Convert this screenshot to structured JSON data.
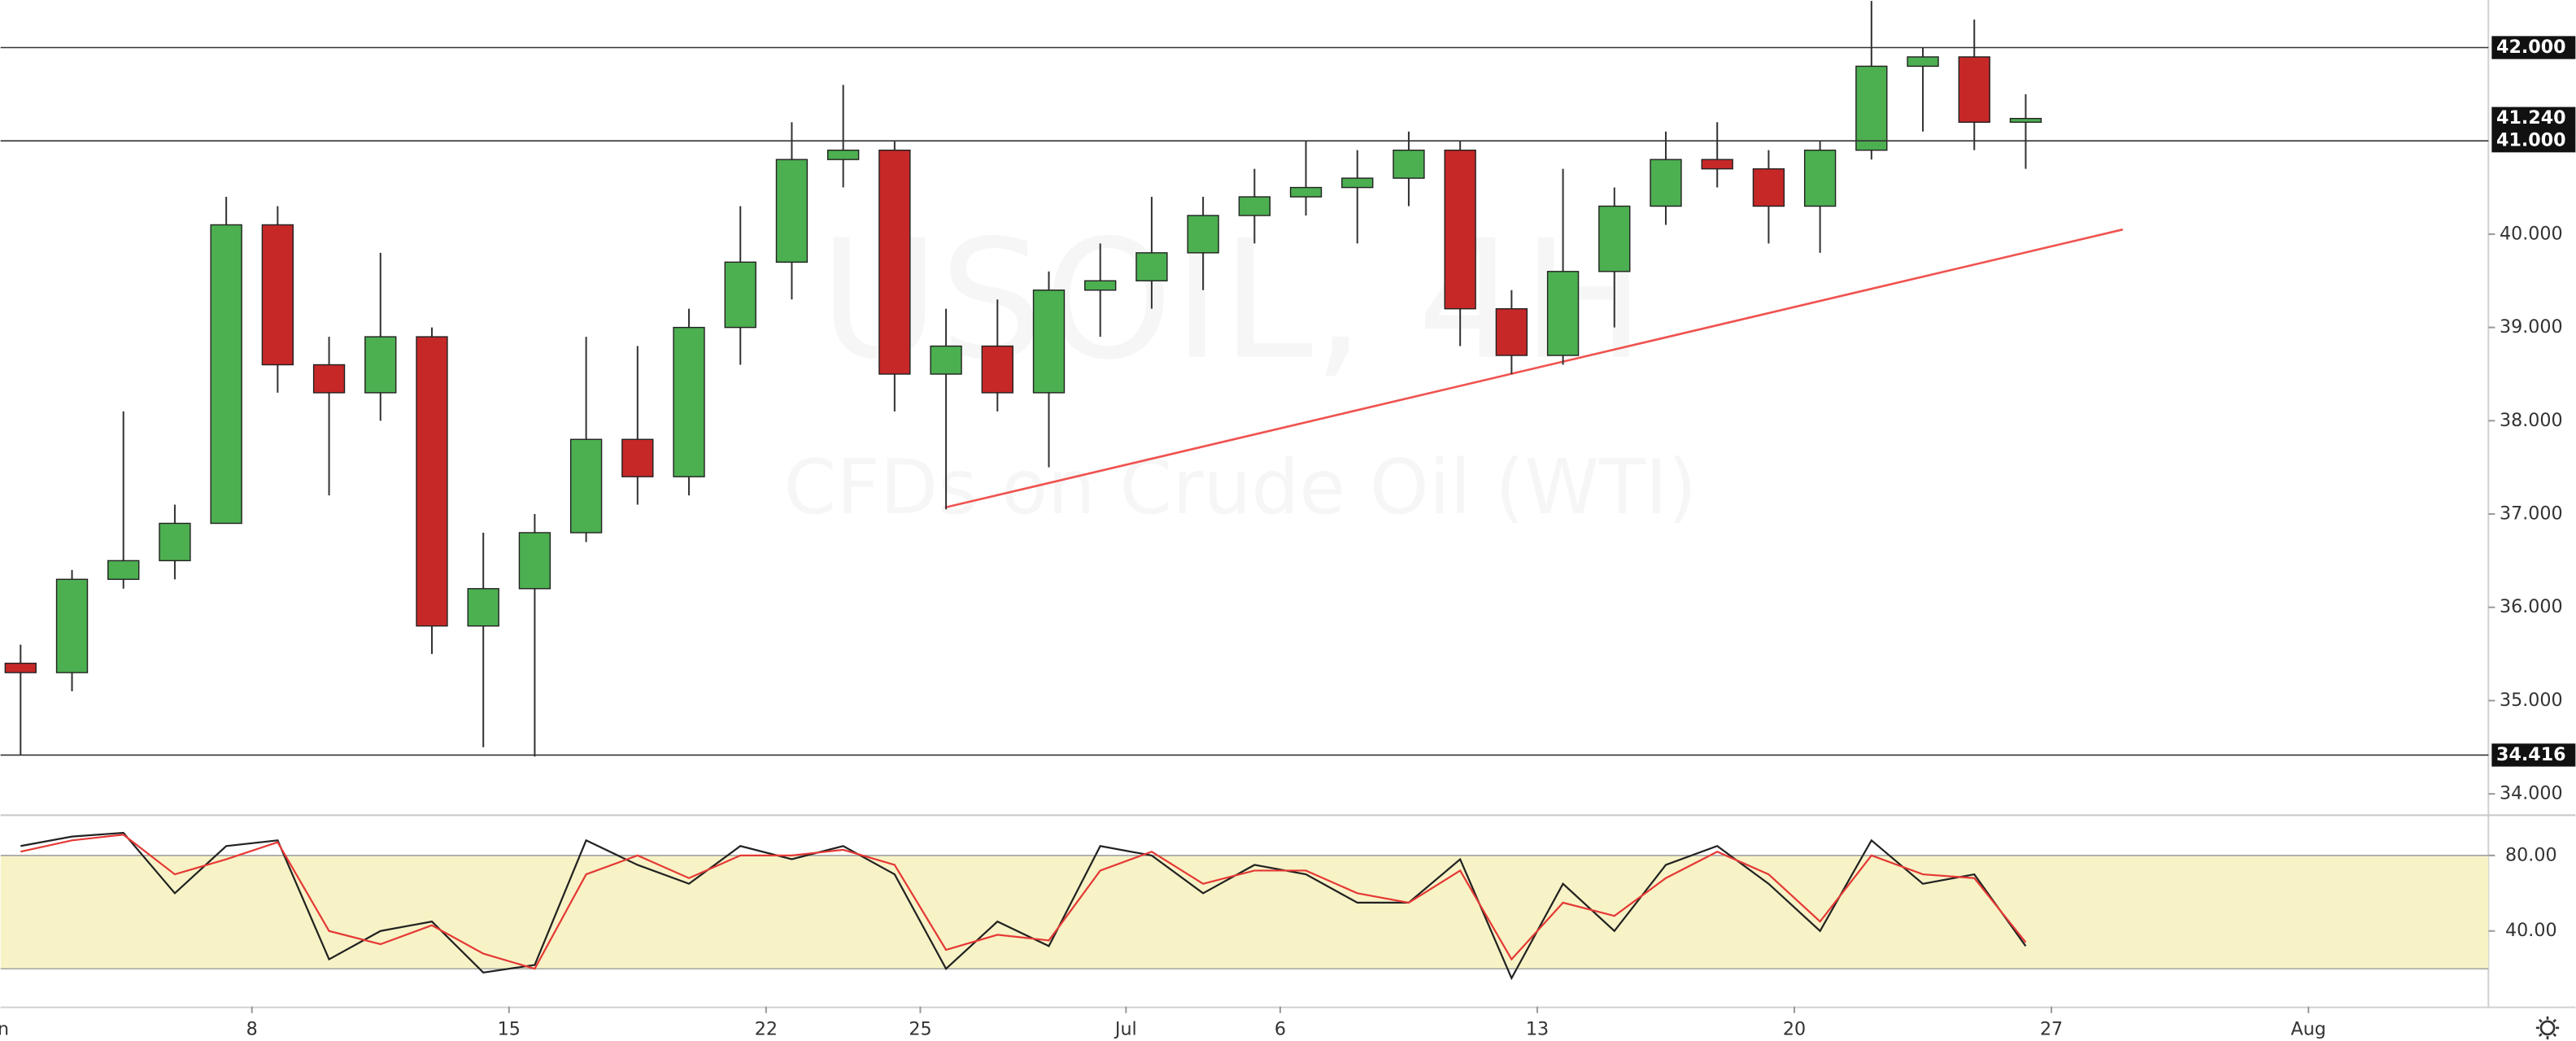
{
  "chart_data": [
    {
      "type": "candlestick",
      "watermark": {
        "symbol": "USOIL, 4H",
        "description": "CFDs on Crude Oil (WTI)"
      },
      "x": [
        0,
        1,
        2,
        3,
        4,
        5,
        6,
        7,
        8,
        9,
        10,
        11,
        12,
        13,
        14,
        15,
        16,
        17,
        18,
        19,
        20,
        21,
        22,
        23,
        24,
        25,
        26,
        27,
        28,
        29,
        30,
        31,
        32,
        33,
        34,
        35,
        36,
        37,
        38,
        39
      ],
      "open": [
        35.4,
        35.3,
        36.3,
        36.5,
        36.9,
        40.1,
        38.6,
        38.3,
        38.9,
        35.8,
        36.2,
        36.8,
        37.8,
        37.4,
        39.0,
        39.7,
        40.8,
        40.9,
        38.5,
        38.8,
        38.3,
        39.4,
        39.5,
        39.8,
        40.2,
        40.4,
        40.5,
        40.6,
        40.9,
        39.2,
        38.7,
        39.6,
        40.3,
        40.8,
        40.7,
        40.3,
        40.9,
        41.8,
        41.9,
        41.2
      ],
      "high": [
        35.6,
        36.4,
        38.1,
        37.1,
        40.4,
        40.3,
        38.9,
        39.8,
        39.0,
        36.8,
        37.0,
        38.9,
        38.8,
        39.2,
        40.3,
        41.2,
        41.6,
        41.0,
        39.2,
        39.3,
        39.6,
        39.9,
        40.4,
        40.4,
        40.7,
        41.0,
        40.9,
        41.1,
        41.0,
        39.4,
        40.7,
        40.5,
        41.1,
        41.2,
        40.9,
        41.0,
        42.5,
        42.0,
        42.3,
        41.5
      ],
      "low": [
        34.42,
        35.1,
        36.2,
        36.3,
        36.9,
        38.3,
        37.2,
        38.0,
        35.5,
        34.5,
        34.4,
        36.7,
        37.1,
        37.2,
        38.6,
        39.3,
        40.5,
        38.1,
        37.05,
        38.1,
        37.5,
        38.9,
        39.2,
        39.4,
        39.9,
        40.2,
        39.9,
        40.3,
        38.8,
        38.5,
        38.6,
        39.0,
        40.1,
        40.5,
        39.9,
        39.8,
        40.8,
        41.1,
        40.9,
        40.7
      ],
      "close": [
        35.3,
        36.3,
        36.5,
        36.9,
        40.1,
        38.6,
        38.3,
        38.9,
        35.8,
        36.2,
        36.8,
        37.8,
        37.4,
        39.0,
        39.7,
        40.8,
        40.9,
        38.5,
        38.8,
        38.3,
        39.4,
        39.5,
        39.8,
        40.2,
        40.4,
        40.5,
        40.6,
        40.9,
        39.2,
        38.7,
        39.6,
        40.3,
        40.8,
        40.7,
        40.3,
        40.9,
        41.8,
        41.9,
        41.2,
        41.24
      ],
      "up_color": "#4caf50",
      "down_color": "#c62828",
      "xlim": [
        0.11,
        48.5
      ],
      "xticks": [
        {
          "value": 0,
          "label": "Jun"
        },
        {
          "value": 5,
          "label": "8"
        },
        {
          "value": 10,
          "label": "15"
        },
        {
          "value": 15,
          "label": "22"
        },
        {
          "value": 18,
          "label": "25"
        },
        {
          "value": 22,
          "label": "Jul"
        },
        {
          "value": 25,
          "label": "6"
        },
        {
          "value": 30,
          "label": "13"
        },
        {
          "value": 35,
          "label": "20"
        },
        {
          "value": 40,
          "label": "27"
        },
        {
          "value": 45,
          "label": "Aug"
        }
      ],
      "ylim": [
        33.78,
        42.51
      ],
      "yticks": [
        {
          "value": 34,
          "label": "34.000"
        },
        {
          "value": 35,
          "label": "35.000"
        },
        {
          "value": 36,
          "label": "36.000"
        },
        {
          "value": 37,
          "label": "37.000"
        },
        {
          "value": 38,
          "label": "38.000"
        },
        {
          "value": 39,
          "label": "39.000"
        },
        {
          "value": 40,
          "label": "40.000"
        }
      ],
      "levels": [
        {
          "value": 42,
          "label": "42.000"
        },
        {
          "value": 41,
          "label": "41.000"
        },
        {
          "value": 34.416,
          "label": "34.416"
        }
      ],
      "last_price": {
        "value": 41.24,
        "label": "41.240"
      },
      "trendline": {
        "x": [
          18.48,
          41.39
        ],
        "y": [
          37.07,
          40.05
        ],
        "color": "#ef5350"
      }
    },
    {
      "type": "line",
      "x": [
        0,
        1,
        2,
        3,
        4,
        5,
        6,
        7,
        8,
        9,
        10,
        11,
        12,
        13,
        14,
        15,
        16,
        17,
        18,
        19,
        20,
        21,
        22,
        23,
        24,
        25,
        26,
        27,
        28,
        29,
        30,
        31,
        32,
        33,
        34,
        35,
        36,
        37,
        38,
        39
      ],
      "series": [
        {
          "color": "#222222",
          "values": [
            85,
            90,
            92,
            60,
            85,
            88,
            25,
            40,
            45,
            18,
            22,
            88,
            75,
            65,
            85,
            78,
            85,
            70,
            20,
            45,
            32,
            85,
            80,
            60,
            75,
            70,
            55,
            55,
            78,
            15,
            65,
            40,
            75,
            85,
            65,
            40,
            88,
            65,
            70,
            32
          ]
        },
        {
          "color": "#e53935",
          "values": [
            82,
            88,
            91,
            70,
            78,
            87,
            40,
            33,
            43,
            28,
            20,
            70,
            80,
            68,
            80,
            80,
            83,
            75,
            30,
            38,
            35,
            72,
            82,
            65,
            72,
            72,
            60,
            55,
            72,
            25,
            55,
            48,
            68,
            82,
            70,
            45,
            80,
            70,
            68,
            34
          ]
        }
      ],
      "ylim": [
        0,
        100
      ],
      "yticks": [
        {
          "value": 40,
          "label": "40.00"
        },
        {
          "value": 80,
          "label": "80.00"
        }
      ],
      "band": [
        20,
        80
      ],
      "band_color": "#f7f3c6"
    }
  ]
}
